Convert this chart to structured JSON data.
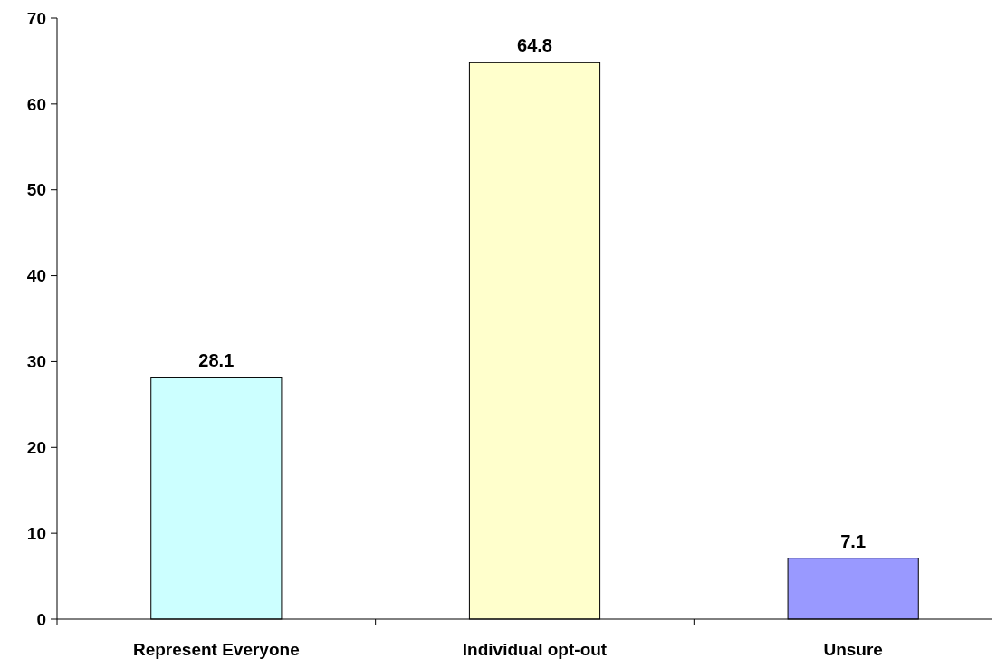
{
  "chart_data": {
    "type": "bar",
    "categories": [
      "Represent Everyone",
      "Individual opt-out",
      "Unsure"
    ],
    "values": [
      28.1,
      64.8,
      7.1
    ],
    "colors": [
      "#ccffff",
      "#ffffcc",
      "#9999ff"
    ],
    "ylim": [
      0,
      70
    ],
    "yticks": [
      0,
      10,
      20,
      30,
      40,
      50,
      60,
      70
    ],
    "data_labels": true,
    "grid": false
  }
}
